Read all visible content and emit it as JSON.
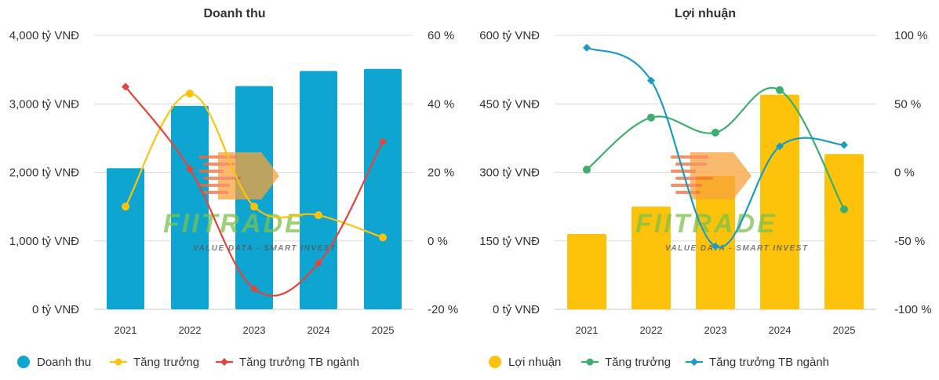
{
  "chart_data": [
    {
      "type": "bar",
      "title": "Doanh thu",
      "categories": [
        "2021",
        "2022",
        "2023",
        "2024",
        "2025"
      ],
      "y_left": {
        "ticks": [
          "0 tỷ VNĐ",
          "1,000 tỷ VNĐ",
          "2,000 tỷ VNĐ",
          "3,000 tỷ VNĐ",
          "4,000 tỷ VNĐ"
        ],
        "range": [
          0,
          4000
        ]
      },
      "y_right": {
        "ticks": [
          "-20 %",
          "0 %",
          "20 %",
          "40 %",
          "60 %"
        ],
        "range": [
          -20,
          60
        ]
      },
      "series": [
        {
          "name": "Doanh thu",
          "kind": "bar",
          "axis": "left",
          "color": "#0ea5d1",
          "values": [
            2060,
            2970,
            3260,
            3480,
            3510
          ]
        },
        {
          "name": "Tăng trưởng",
          "kind": "line",
          "axis": "right",
          "color": "#fcc30a",
          "values": [
            10,
            43,
            10,
            7.5,
            1
          ]
        },
        {
          "name": "Tăng trưởng TB ngành",
          "kind": "line",
          "axis": "right",
          "color": "#e5443b",
          "values": [
            45,
            21,
            -14,
            -6.5,
            29
          ]
        }
      ],
      "grid": true,
      "legend": "bottom-left"
    },
    {
      "type": "bar",
      "title": "Lợi nhuận",
      "categories": [
        "2021",
        "2022",
        "2023",
        "2024",
        "2025"
      ],
      "y_left": {
        "ticks": [
          "0 tỷ VNĐ",
          "150 tỷ VNĐ",
          "300 tỷ VNĐ",
          "450 tỷ VNĐ",
          "600 tỷ VNĐ"
        ],
        "range": [
          0,
          600
        ]
      },
      "y_right": {
        "ticks": [
          "-100 %",
          "-50 %",
          "0 %",
          "50 %",
          "100 %"
        ],
        "range": [
          -100,
          100
        ]
      },
      "series": [
        {
          "name": "Lợi nhuận",
          "kind": "bar",
          "axis": "left",
          "color": "#fcc30a",
          "values": [
            165,
            225,
            292,
            470,
            340
          ]
        },
        {
          "name": "Tăng trưởng",
          "kind": "line",
          "axis": "right",
          "color": "#3dae6e",
          "values": [
            2,
            40,
            29,
            60,
            -27
          ]
        },
        {
          "name": "Tăng trưởng TB ngành",
          "kind": "line",
          "axis": "right",
          "color": "#1a9bc4",
          "values": [
            91,
            67,
            -54,
            19,
            20
          ]
        }
      ],
      "grid": true,
      "legend": "bottom-left"
    }
  ],
  "watermark": {
    "brand": "FIITRADE",
    "tagline": "VALUE DATA - SMART INVEST"
  }
}
